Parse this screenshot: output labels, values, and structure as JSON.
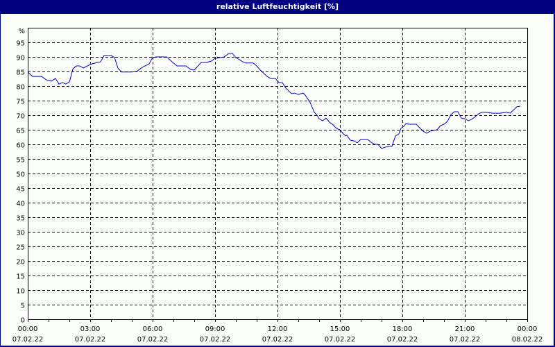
{
  "window": {
    "title": "relative Luftfeuchtigkeit [%]"
  },
  "colors": {
    "title_bar": "#000080",
    "background": "#fbfefb",
    "line": "#0000cc",
    "grid": "#000000"
  },
  "chart_data": {
    "type": "line",
    "title": "relative Luftfeuchtigkeit [%]",
    "xlabel": "",
    "ylabel": "%",
    "ylim": [
      0,
      100
    ],
    "xlim_hours": [
      0,
      24
    ],
    "grid": true,
    "y_ticks": [
      "0",
      "5",
      "10",
      "15",
      "20",
      "25",
      "30",
      "35",
      "40",
      "45",
      "50",
      "55",
      "60",
      "65",
      "70",
      "75",
      "80",
      "85",
      "90",
      "95",
      "%"
    ],
    "x_ticks": [
      {
        "time": "00:00",
        "date": "07.02.22"
      },
      {
        "time": "03:00",
        "date": "07.02.22"
      },
      {
        "time": "06:00",
        "date": "07.02.22"
      },
      {
        "time": "09:00",
        "date": "07.02.22"
      },
      {
        "time": "12:00",
        "date": "07.02.22"
      },
      {
        "time": "15:00",
        "date": "07.02.22"
      },
      {
        "time": "18:00",
        "date": "07.02.22"
      },
      {
        "time": "21:00",
        "date": "07.02.22"
      },
      {
        "time": "00:00",
        "date": "08.02.22"
      }
    ],
    "series": [
      {
        "name": "relative Luftfeuchtigkeit",
        "x_hours": [
          0.0,
          0.23,
          0.67,
          0.87,
          1.13,
          1.33,
          1.5,
          1.67,
          1.83,
          2.0,
          2.17,
          2.33,
          2.5,
          2.67,
          3.0,
          3.33,
          3.5,
          3.67,
          4.0,
          4.17,
          4.33,
          4.5,
          4.67,
          5.0,
          5.23,
          5.5,
          5.83,
          6.0,
          6.17,
          6.67,
          7.0,
          7.17,
          7.6,
          7.83,
          8.0,
          8.33,
          8.6,
          8.83,
          9.0,
          9.43,
          9.67,
          9.83,
          10.0,
          10.33,
          10.5,
          10.83,
          11.0,
          11.17,
          11.5,
          11.67,
          11.9,
          12.07,
          12.23,
          12.4,
          12.67,
          12.83,
          13.0,
          13.23,
          13.33,
          13.57,
          13.77,
          13.9,
          14.0,
          14.17,
          14.33,
          14.5,
          14.67,
          14.83,
          15.0,
          15.17,
          15.27,
          15.33,
          15.5,
          15.67,
          15.83,
          16.0,
          16.17,
          16.33,
          16.5,
          16.67,
          16.83,
          17.0,
          17.17,
          17.33,
          17.5,
          17.67,
          17.83,
          17.93,
          18.07,
          18.17,
          18.33,
          18.67,
          18.83,
          19.0,
          19.17,
          19.33,
          19.5,
          19.67,
          19.83,
          20.0,
          20.17,
          20.33,
          20.5,
          20.67,
          20.83,
          21.0,
          21.17,
          21.33,
          21.5,
          21.67,
          21.83,
          22.0,
          22.33,
          22.67,
          23.0,
          23.17,
          23.33,
          23.5,
          23.67
        ],
        "values": [
          84.8,
          83.3,
          83.3,
          82.2,
          81.7,
          82.6,
          80.7,
          81.2,
          80.7,
          81.4,
          85.9,
          86.9,
          86.9,
          86.2,
          87.4,
          88.1,
          88.3,
          90.5,
          90.5,
          89.8,
          86.2,
          84.8,
          84.8,
          84.8,
          85.0,
          86.4,
          87.6,
          89.8,
          90.0,
          90.0,
          87.9,
          86.9,
          86.9,
          85.7,
          85.5,
          88.1,
          88.1,
          88.6,
          89.5,
          90.0,
          91.2,
          91.2,
          89.8,
          88.3,
          87.9,
          87.9,
          86.9,
          85.5,
          83.3,
          82.6,
          82.6,
          81.2,
          81.2,
          79.3,
          77.4,
          77.6,
          77.1,
          77.6,
          76.9,
          74.3,
          71.0,
          70.0,
          68.8,
          68.1,
          69.0,
          67.6,
          66.7,
          65.5,
          65.0,
          63.6,
          62.9,
          63.1,
          61.4,
          61.2,
          60.5,
          61.7,
          61.7,
          61.7,
          60.7,
          60.0,
          60.0,
          58.6,
          59.0,
          59.3,
          59.3,
          62.9,
          63.6,
          65.5,
          66.2,
          67.1,
          66.9,
          66.9,
          65.7,
          64.5,
          63.8,
          64.5,
          64.8,
          65.0,
          66.4,
          66.9,
          67.9,
          70.2,
          71.2,
          71.2,
          69.0,
          68.8,
          68.1,
          68.6,
          69.5,
          70.5,
          71.0,
          71.0,
          70.7,
          70.7,
          71.0,
          70.7,
          71.7,
          72.9,
          73.1
        ]
      }
    ]
  }
}
